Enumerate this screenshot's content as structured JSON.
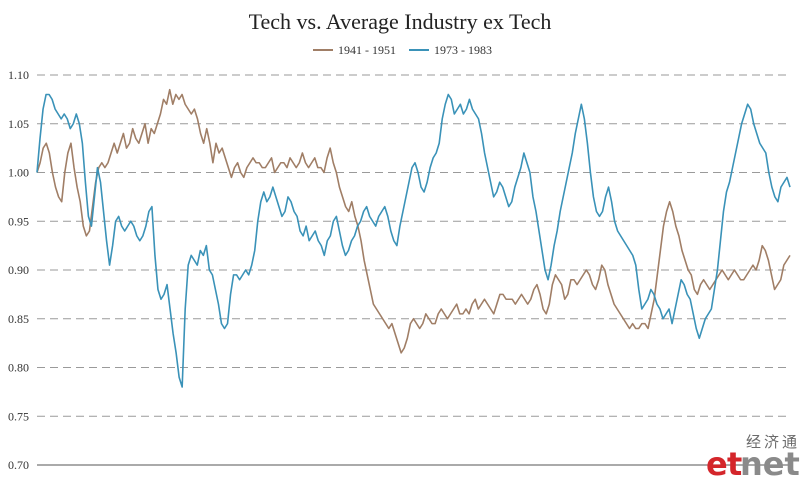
{
  "chart_data": {
    "type": "line",
    "title": "Tech vs. Average Industry ex Tech",
    "xlabel": "",
    "ylabel": "",
    "ylim": [
      0.7,
      1.1
    ],
    "yticks": [
      "1.10",
      "1.05",
      "1.00",
      "0.95",
      "0.90",
      "0.85",
      "0.80",
      "0.75",
      "0.70"
    ],
    "grid": true,
    "legend_position": "top-center",
    "series": [
      {
        "name": "1941 - 1951",
        "color": "#a07e66",
        "values": [
          1.0,
          1.01,
          1.025,
          1.03,
          1.02,
          1.0,
          0.985,
          0.975,
          0.97,
          1.0,
          1.02,
          1.03,
          1.005,
          0.985,
          0.97,
          0.945,
          0.935,
          0.94,
          0.965,
          0.99,
          1.005,
          1.01,
          1.005,
          1.01,
          1.02,
          1.03,
          1.02,
          1.03,
          1.04,
          1.025,
          1.03,
          1.045,
          1.035,
          1.03,
          1.04,
          1.05,
          1.03,
          1.045,
          1.04,
          1.05,
          1.06,
          1.075,
          1.07,
          1.085,
          1.07,
          1.08,
          1.075,
          1.08,
          1.07,
          1.065,
          1.06,
          1.065,
          1.055,
          1.04,
          1.03,
          1.045,
          1.03,
          1.01,
          1.03,
          1.02,
          1.025,
          1.015,
          1.005,
          0.995,
          1.005,
          1.01,
          1.0,
          0.995,
          1.005,
          1.01,
          1.015,
          1.01,
          1.01,
          1.005,
          1.005,
          1.01,
          1.015,
          1.0,
          1.005,
          1.01,
          1.01,
          1.005,
          1.015,
          1.01,
          1.005,
          1.01,
          1.02,
          1.01,
          1.005,
          1.01,
          1.015,
          1.005,
          1.005,
          1.0,
          1.015,
          1.025,
          1.01,
          1.0,
          0.985,
          0.975,
          0.965,
          0.96,
          0.97,
          0.955,
          0.945,
          0.93,
          0.91,
          0.895,
          0.88,
          0.865,
          0.86,
          0.855,
          0.85,
          0.845,
          0.84,
          0.845,
          0.835,
          0.825,
          0.815,
          0.82,
          0.83,
          0.845,
          0.85,
          0.845,
          0.84,
          0.845,
          0.855,
          0.85,
          0.845,
          0.845,
          0.855,
          0.86,
          0.855,
          0.85,
          0.855,
          0.86,
          0.865,
          0.855,
          0.855,
          0.86,
          0.855,
          0.865,
          0.87,
          0.86,
          0.865,
          0.87,
          0.865,
          0.86,
          0.855,
          0.865,
          0.875,
          0.875,
          0.87,
          0.87,
          0.87,
          0.865,
          0.87,
          0.875,
          0.87,
          0.865,
          0.87,
          0.88,
          0.885,
          0.875,
          0.86,
          0.855,
          0.865,
          0.885,
          0.895,
          0.89,
          0.885,
          0.87,
          0.875,
          0.89,
          0.89,
          0.885,
          0.89,
          0.895,
          0.9,
          0.895,
          0.885,
          0.88,
          0.89,
          0.905,
          0.9,
          0.885,
          0.875,
          0.865,
          0.86,
          0.855,
          0.85,
          0.845,
          0.84,
          0.845,
          0.84,
          0.84,
          0.845,
          0.845,
          0.84,
          0.855,
          0.87,
          0.895,
          0.92,
          0.945,
          0.96,
          0.97,
          0.96,
          0.945,
          0.935,
          0.92,
          0.91,
          0.9,
          0.895,
          0.88,
          0.875,
          0.885,
          0.89,
          0.885,
          0.88,
          0.885,
          0.89,
          0.895,
          0.9,
          0.895,
          0.89,
          0.895,
          0.9,
          0.895,
          0.89,
          0.89,
          0.895,
          0.9,
          0.905,
          0.9,
          0.91,
          0.925,
          0.92,
          0.91,
          0.895,
          0.88,
          0.885,
          0.89,
          0.905,
          0.91,
          0.915
        ]
      },
      {
        "name": "1973 - 1983",
        "color": "#3a92b8",
        "values": [
          1.0,
          1.035,
          1.065,
          1.08,
          1.08,
          1.075,
          1.065,
          1.06,
          1.055,
          1.06,
          1.055,
          1.045,
          1.05,
          1.06,
          1.05,
          1.03,
          0.99,
          0.955,
          0.945,
          0.975,
          1.005,
          0.99,
          0.96,
          0.93,
          0.905,
          0.925,
          0.95,
          0.955,
          0.945,
          0.94,
          0.945,
          0.95,
          0.945,
          0.935,
          0.93,
          0.935,
          0.945,
          0.96,
          0.965,
          0.915,
          0.88,
          0.87,
          0.875,
          0.885,
          0.86,
          0.835,
          0.815,
          0.79,
          0.78,
          0.86,
          0.905,
          0.915,
          0.91,
          0.905,
          0.92,
          0.915,
          0.925,
          0.9,
          0.895,
          0.88,
          0.865,
          0.845,
          0.84,
          0.845,
          0.875,
          0.895,
          0.895,
          0.89,
          0.895,
          0.9,
          0.895,
          0.905,
          0.92,
          0.95,
          0.97,
          0.98,
          0.97,
          0.975,
          0.985,
          0.975,
          0.965,
          0.955,
          0.96,
          0.975,
          0.97,
          0.96,
          0.955,
          0.94,
          0.935,
          0.945,
          0.93,
          0.935,
          0.94,
          0.93,
          0.925,
          0.915,
          0.93,
          0.935,
          0.95,
          0.955,
          0.94,
          0.925,
          0.915,
          0.92,
          0.93,
          0.935,
          0.945,
          0.95,
          0.96,
          0.965,
          0.955,
          0.95,
          0.945,
          0.955,
          0.96,
          0.965,
          0.955,
          0.94,
          0.93,
          0.925,
          0.945,
          0.96,
          0.975,
          0.99,
          1.005,
          1.01,
          1.0,
          0.985,
          0.98,
          0.99,
          1.005,
          1.015,
          1.02,
          1.03,
          1.055,
          1.07,
          1.08,
          1.075,
          1.06,
          1.065,
          1.07,
          1.06,
          1.065,
          1.075,
          1.065,
          1.06,
          1.055,
          1.04,
          1.02,
          1.005,
          0.99,
          0.975,
          0.98,
          0.99,
          0.985,
          0.975,
          0.965,
          0.97,
          0.985,
          0.995,
          1.005,
          1.02,
          1.01,
          1.0,
          0.975,
          0.96,
          0.94,
          0.92,
          0.9,
          0.89,
          0.905,
          0.925,
          0.94,
          0.96,
          0.975,
          0.99,
          1.005,
          1.02,
          1.04,
          1.055,
          1.07,
          1.055,
          1.03,
          1.0,
          0.975,
          0.96,
          0.955,
          0.96,
          0.975,
          0.985,
          0.97,
          0.95,
          0.94,
          0.935,
          0.93,
          0.925,
          0.92,
          0.915,
          0.905,
          0.88,
          0.86,
          0.865,
          0.87,
          0.88,
          0.875,
          0.865,
          0.86,
          0.85,
          0.855,
          0.86,
          0.845,
          0.86,
          0.875,
          0.89,
          0.885,
          0.875,
          0.87,
          0.855,
          0.84,
          0.83,
          0.84,
          0.85,
          0.855,
          0.86,
          0.88,
          0.9,
          0.93,
          0.96,
          0.98,
          0.99,
          1.005,
          1.02,
          1.035,
          1.05,
          1.06,
          1.07,
          1.065,
          1.05,
          1.04,
          1.03,
          1.025,
          1.02,
          1.0,
          0.985,
          0.975,
          0.97,
          0.985,
          0.99,
          0.995,
          0.985
        ]
      }
    ]
  },
  "watermark": {
    "cn_text": "经济通",
    "brand_e": "e",
    "brand_t": "t",
    "brand_rest": "net",
    "brand_red": "#d4262b",
    "brand_gray": "#8a8a8a"
  }
}
